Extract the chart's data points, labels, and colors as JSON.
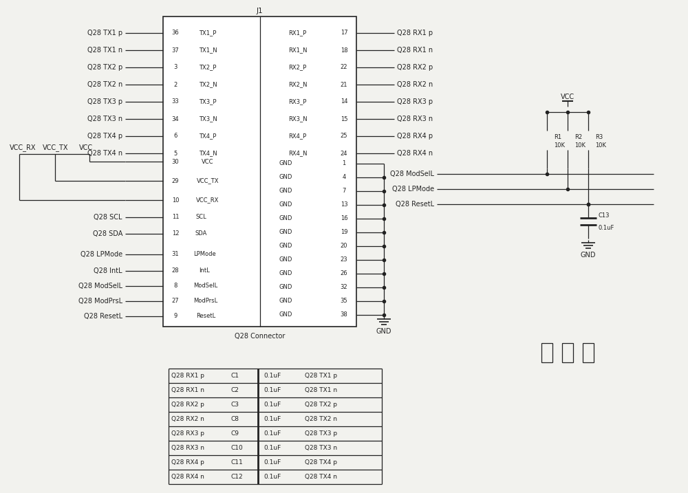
{
  "bg_color": "#f2f2ee",
  "line_color": "#222222",
  "text_color": "#222222",
  "font_size": 7.0,
  "left_tx_pins": [
    {
      "num": "36",
      "label": "Q28 TX1 p",
      "inner": "TX1_P"
    },
    {
      "num": "37",
      "label": "Q28 TX1 n",
      "inner": "TX1_N"
    },
    {
      "num": "3",
      "label": "Q28 TX2 p",
      "inner": "TX2_P"
    },
    {
      "num": "2",
      "label": "Q28 TX2 n",
      "inner": "TX2_N"
    },
    {
      "num": "33",
      "label": "Q28 TX3 p",
      "inner": "TX3_P"
    },
    {
      "num": "34",
      "label": "Q28 TX3 n",
      "inner": "TX3_N"
    },
    {
      "num": "6",
      "label": "Q28 TX4 p",
      "inner": "TX4_P"
    },
    {
      "num": "5",
      "label": "Q28 TX4 n",
      "inner": "TX4_N"
    }
  ],
  "right_rx_pins": [
    {
      "num": "17",
      "label": "Q28 RX1 p",
      "inner": "RX1_P"
    },
    {
      "num": "18",
      "label": "Q28 RX1 n",
      "inner": "RX1_N"
    },
    {
      "num": "22",
      "label": "Q28 RX2 p",
      "inner": "RX2_P"
    },
    {
      "num": "21",
      "label": "Q28 RX2 n",
      "inner": "RX2_N"
    },
    {
      "num": "14",
      "label": "Q28 RX3 p",
      "inner": "RX3_P"
    },
    {
      "num": "15",
      "label": "Q28 RX3 n",
      "inner": "RX3_N"
    },
    {
      "num": "25",
      "label": "Q28 RX4 p",
      "inner": "RX4_P"
    },
    {
      "num": "24",
      "label": "Q28 RX4 n",
      "inner": "RX4_N"
    }
  ],
  "vcc_pins": [
    {
      "num": "30",
      "inner": "VCC"
    },
    {
      "num": "29",
      "inner": "VCC_TX"
    },
    {
      "num": "10",
      "inner": "VCC_RX"
    }
  ],
  "scl_sda_pins": [
    {
      "num": "11",
      "label": "Q28 SCL",
      "inner": "SCL"
    },
    {
      "num": "12",
      "label": "Q28 SDA",
      "inner": "SDA"
    }
  ],
  "ctrl_pins": [
    {
      "num": "31",
      "label": "Q28 LPMode",
      "inner": "LPMode"
    },
    {
      "num": "28",
      "label": "Q28 IntL",
      "inner": "IntL"
    }
  ],
  "mod_pins": [
    {
      "num": "8",
      "label": "Q28 ModSelL",
      "inner": "ModSelL"
    },
    {
      "num": "27",
      "label": "Q28 ModPrsL",
      "inner": "ModPrsL"
    },
    {
      "num": "9",
      "label": "Q28 ResetL",
      "inner": "ResetL"
    }
  ],
  "gnd_pins": [
    "1",
    "4",
    "7",
    "13",
    "16",
    "19",
    "20",
    "23",
    "26",
    "32",
    "35",
    "38"
  ],
  "cap_rows": [
    {
      "left": "Q28 RX1 p",
      "cap": "C1",
      "val": "0.1uF",
      "right": "Q28 TX1 p"
    },
    {
      "left": "Q28 RX1 n",
      "cap": "C2",
      "val": "0.1uF",
      "right": "Q28 TX1 n"
    },
    {
      "left": "Q28 RX2 p",
      "cap": "C3",
      "val": "0.1uF",
      "right": "Q28 TX2 p"
    },
    {
      "left": "Q28 RX2 n",
      "cap": "C8",
      "val": "0.1uF",
      "right": "Q28 TX2 n"
    },
    {
      "left": "Q28 RX3 p",
      "cap": "C9",
      "val": "0.1uF",
      "right": "Q28 TX3 p"
    },
    {
      "left": "Q28 RX3 n",
      "cap": "C10",
      "val": "0.1uF",
      "right": "Q28 TX3 n"
    },
    {
      "left": "Q28 RX4 p",
      "cap": "C11",
      "val": "0.1uF",
      "right": "Q28 TX4 p"
    },
    {
      "left": "Q28 RX4 n",
      "cap": "C12",
      "val": "0.1uF",
      "right": "Q28 TX4 n"
    }
  ],
  "resistors": [
    {
      "label": "R1",
      "val": "10K"
    },
    {
      "label": "R2",
      "val": "10K"
    },
    {
      "label": "R3",
      "val": "10K"
    }
  ],
  "pullup_sigs": [
    "Q28 ModSelL",
    "Q28 LPMode",
    "Q28 ResetL"
  ]
}
